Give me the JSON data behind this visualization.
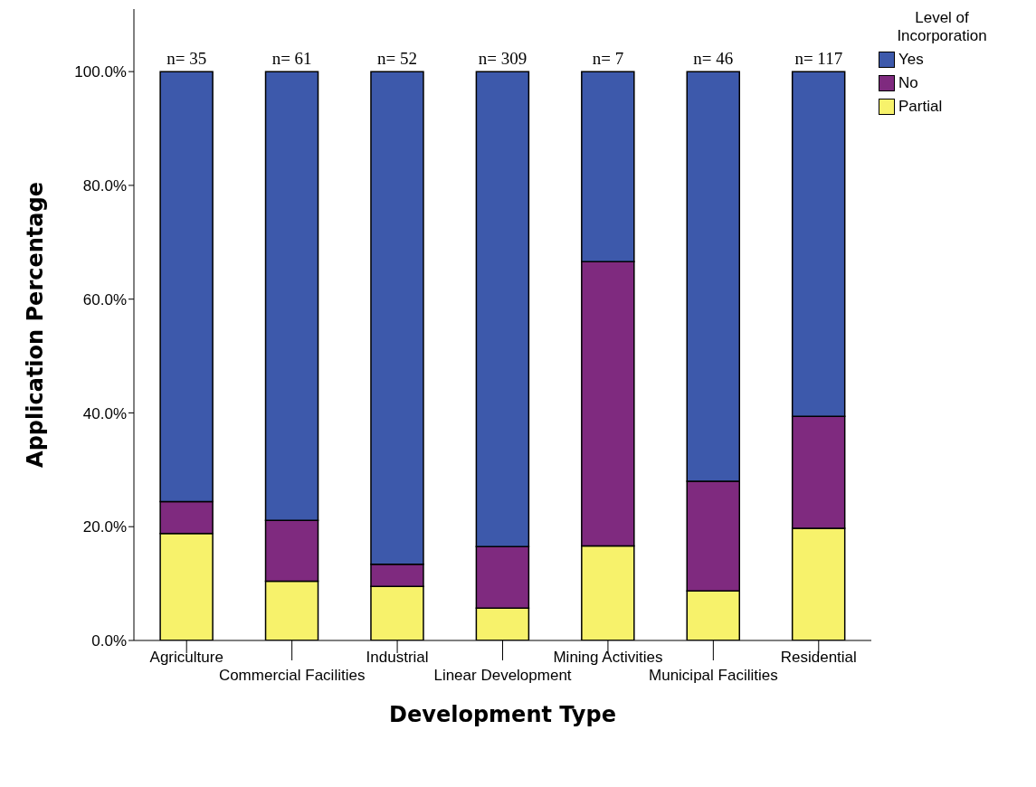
{
  "chart_data": {
    "type": "bar",
    "stacked": true,
    "xlabel": "Development Type",
    "ylabel": "Application Percentage",
    "legend_title": "Level of Incorporation",
    "categories": [
      "Agriculture",
      "Commercial Facilities",
      "Industrial",
      "Linear Development",
      "Mining Activities",
      "Municipal Facilities",
      "Residential"
    ],
    "series": [
      {
        "name": "Partial",
        "color": "#f7f26b",
        "values": [
          18.8,
          10.4,
          9.5,
          5.7,
          16.6,
          8.7,
          19.7
        ]
      },
      {
        "name": "No",
        "color": "#7f2a7f",
        "values": [
          5.6,
          10.7,
          3.9,
          10.8,
          50.0,
          19.3,
          19.7
        ]
      },
      {
        "name": "Yes",
        "color": "#3d59ab",
        "values": [
          75.6,
          78.9,
          86.6,
          83.5,
          33.4,
          72.0,
          60.6
        ]
      }
    ],
    "annotations": [
      {
        "text": "n= 35",
        "x": "Agriculture",
        "y": 100
      },
      {
        "text": "n= 61",
        "x": "Commercial Facilities",
        "y": 100
      },
      {
        "text": "n= 52",
        "x": "Industrial",
        "y": 100
      },
      {
        "text": "n= 309",
        "x": "Linear Development",
        "y": 100
      },
      {
        "text": "n= 7",
        "x": "Mining Activities",
        "y": 100
      },
      {
        "text": "n= 46",
        "x": "Municipal Facilities",
        "y": 100
      },
      {
        "text": "n= 117",
        "x": "Residential",
        "y": 100
      }
    ],
    "ylim": [
      0,
      111
    ],
    "yticks": [
      {
        "value": 0,
        "label": "0.0%"
      },
      {
        "value": 20,
        "label": "20.0%"
      },
      {
        "value": 40,
        "label": "40.0%"
      },
      {
        "value": 60,
        "label": "60.0%"
      },
      {
        "value": 80,
        "label": "80.0%"
      },
      {
        "value": 100,
        "label": "100.0%"
      }
    ],
    "grid": false,
    "legend": "top right"
  }
}
